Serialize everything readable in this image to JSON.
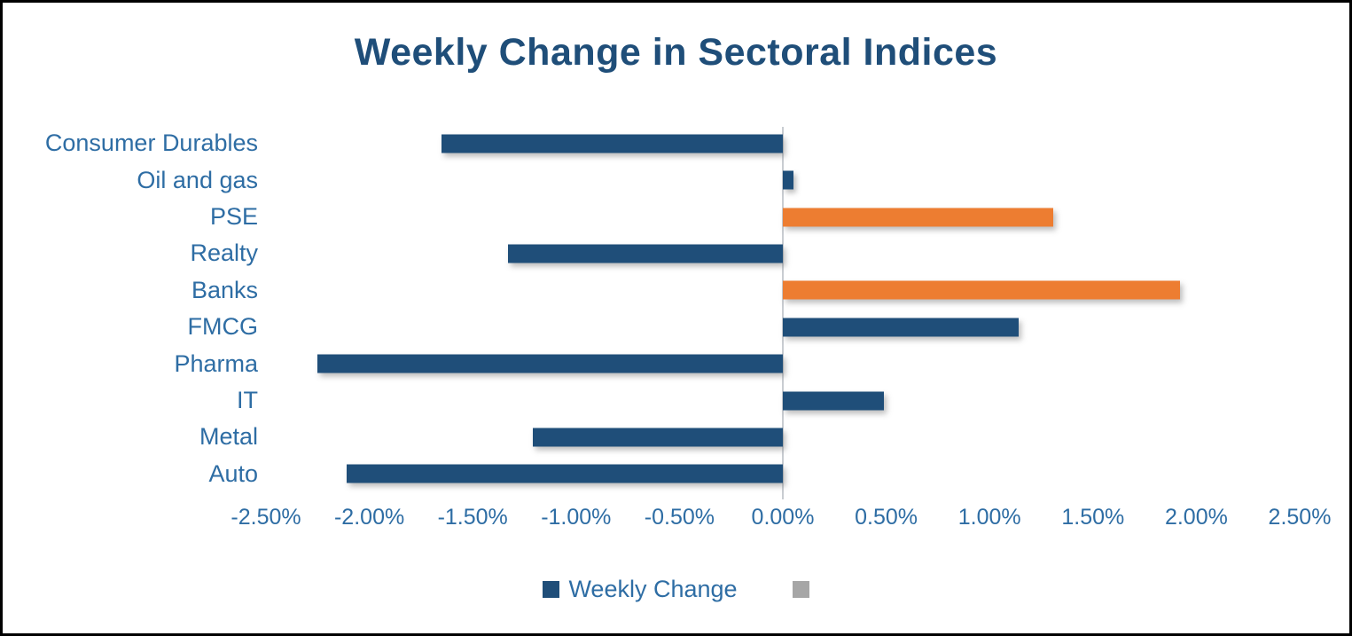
{
  "window": {
    "background": "#FFFFFF",
    "border_color": "#000000"
  },
  "colors": {
    "title_text": "#1F4E79",
    "axis_text": "#2E6DA4",
    "bar_blue": "#1F4E79",
    "bar_orange": "#ED7D31",
    "legend_gray": "#A6A6A6",
    "zero_axis_line": "#C9CDD2"
  },
  "chart_data": {
    "type": "bar",
    "orientation": "horizontal",
    "title": "Weekly Change in Sectoral Indices",
    "categories": [
      "Consumer Durables",
      "Oil and gas",
      "PSE",
      "Realty",
      "Banks",
      "FMCG",
      "Pharma",
      "IT",
      "Metal",
      "Auto"
    ],
    "series": [
      {
        "name": "Weekly Change",
        "values": [
          -1.65,
          0.05,
          1.31,
          -1.33,
          1.92,
          1.14,
          -2.25,
          0.49,
          -1.21,
          -2.11
        ]
      }
    ],
    "point_colors": [
      "#1F4E79",
      "#1F4E79",
      "#ED7D31",
      "#1F4E79",
      "#ED7D31",
      "#1F4E79",
      "#1F4E79",
      "#1F4E79",
      "#1F4E79",
      "#1F4E79"
    ],
    "value_unit": "%",
    "xlim": [
      -2.5,
      2.5
    ],
    "xticks": [
      {
        "value": -2.5,
        "label": "-2.50%"
      },
      {
        "value": -2.0,
        "label": "-2.00%"
      },
      {
        "value": -1.5,
        "label": "-1.50%"
      },
      {
        "value": -1.0,
        "label": "-1.00%"
      },
      {
        "value": -0.5,
        "label": "-0.50%"
      },
      {
        "value": 0.0,
        "label": "0.00%"
      },
      {
        "value": 0.5,
        "label": "0.50%"
      },
      {
        "value": 1.0,
        "label": "1.00%"
      },
      {
        "value": 1.5,
        "label": "1.50%"
      },
      {
        "value": 2.0,
        "label": "2.00%"
      },
      {
        "value": 2.5,
        "label": "2.50%"
      }
    ],
    "grid": false,
    "legend": {
      "position": "bottom",
      "items": [
        {
          "label": "Weekly Change",
          "color": "#1F4E79"
        },
        {
          "label": "",
          "color": "#A6A6A6"
        }
      ]
    }
  }
}
